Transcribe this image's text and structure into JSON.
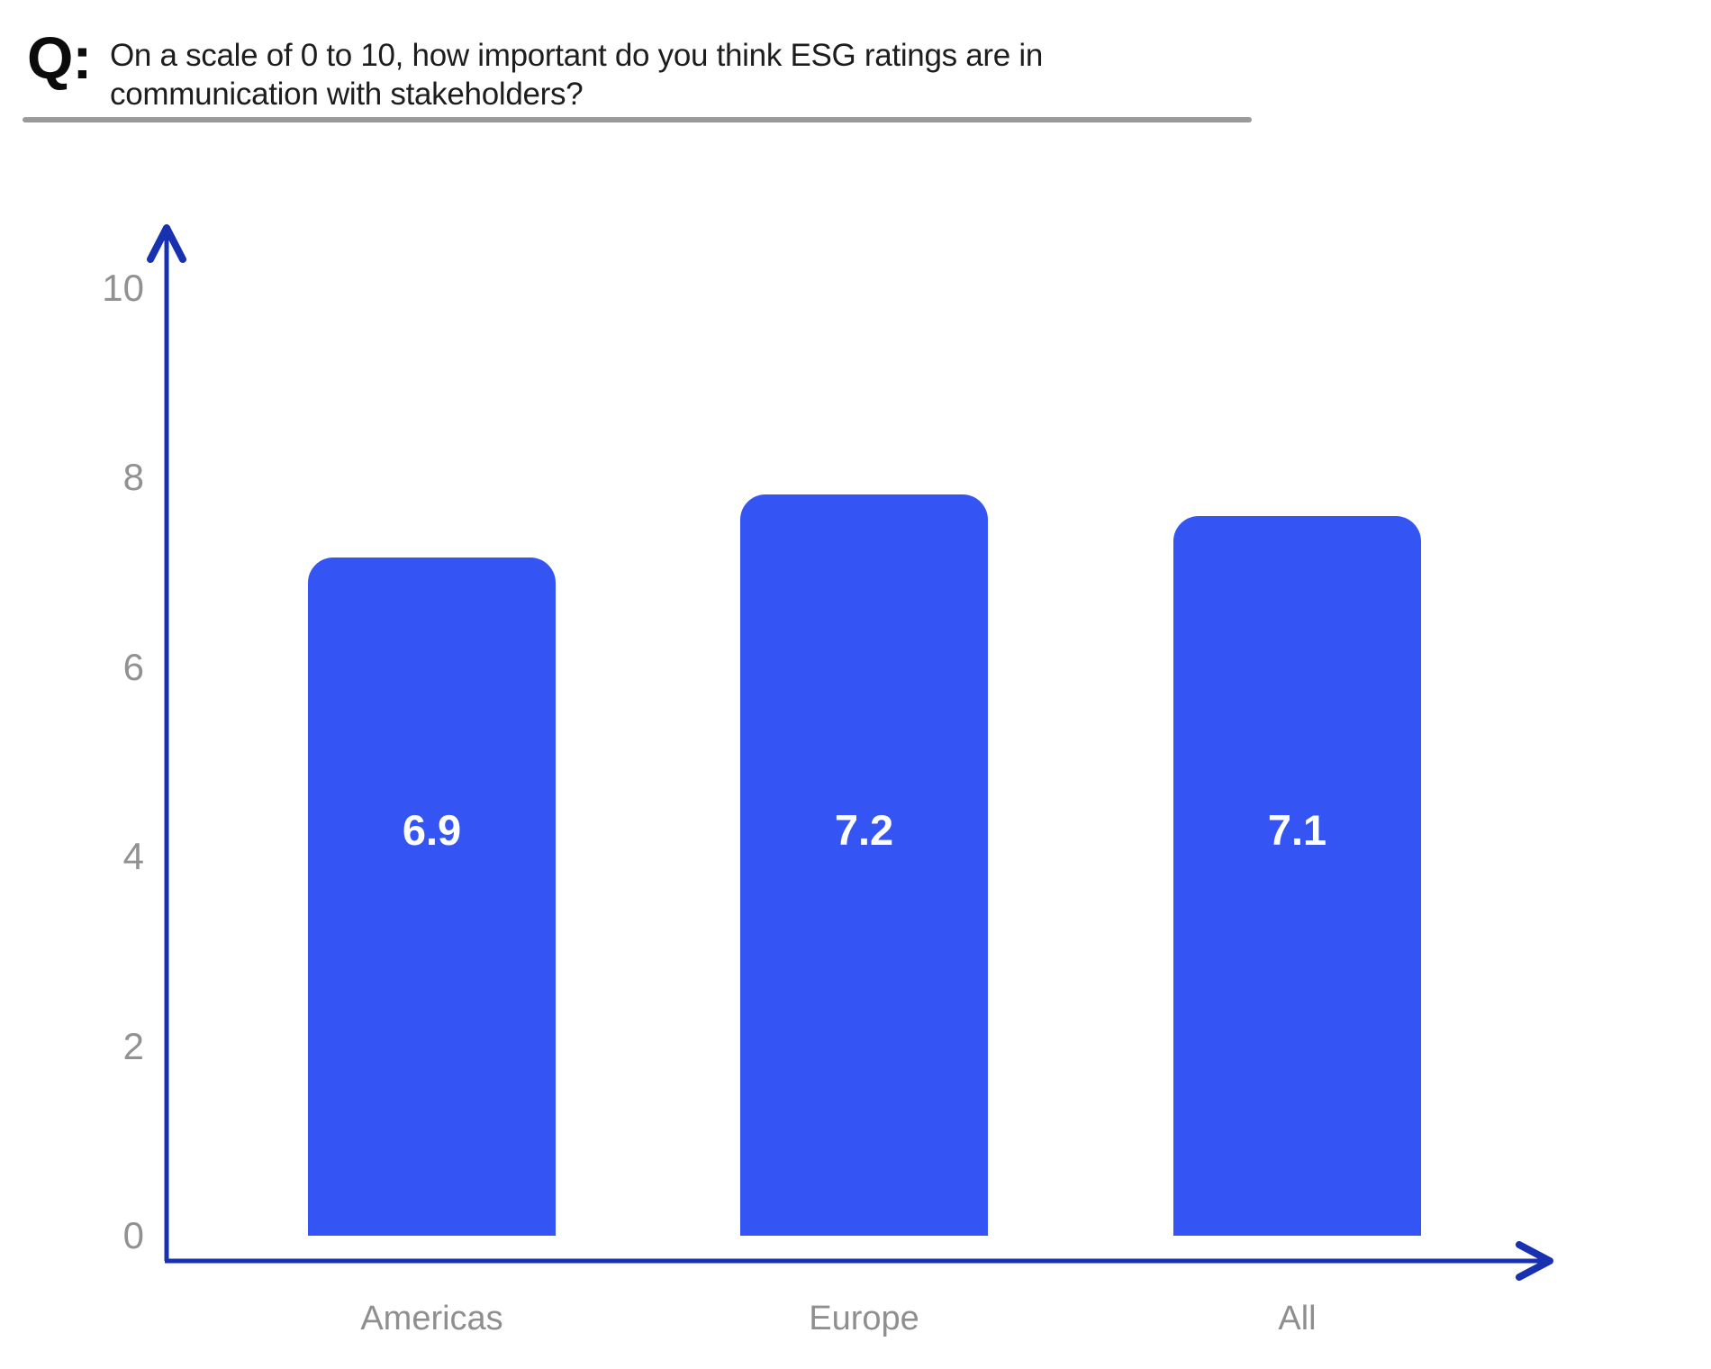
{
  "header": {
    "q_label": "Q:",
    "title_line1": "On a scale of 0 to 10, how important do you think ESG ratings are in",
    "title_line2": "communication with stakeholders?"
  },
  "chart_data": {
    "type": "bar",
    "title": "On a scale of 0 to 10, how important do you think ESG ratings are in communication with stakeholders?",
    "categories": [
      "Americas",
      "Europe",
      "All"
    ],
    "values": [
      6.9,
      7.2,
      7.1
    ],
    "value_labels": [
      "6.9",
      "7.2",
      "7.1"
    ],
    "xlabel": "",
    "ylabel": "",
    "ylim": [
      0,
      10
    ],
    "yticks": [
      0,
      2,
      4,
      6,
      8,
      10
    ],
    "grid": false,
    "legend_position": "none",
    "colors": {
      "bar": "#3455f4",
      "axis": "#1731b0",
      "value_label": "#ffffff",
      "tick_label": "#919191",
      "category_label": "#8f8f8f",
      "title_text": "#1d1d1f",
      "rule": "#9a9a9a",
      "background": "#ffffff"
    }
  }
}
